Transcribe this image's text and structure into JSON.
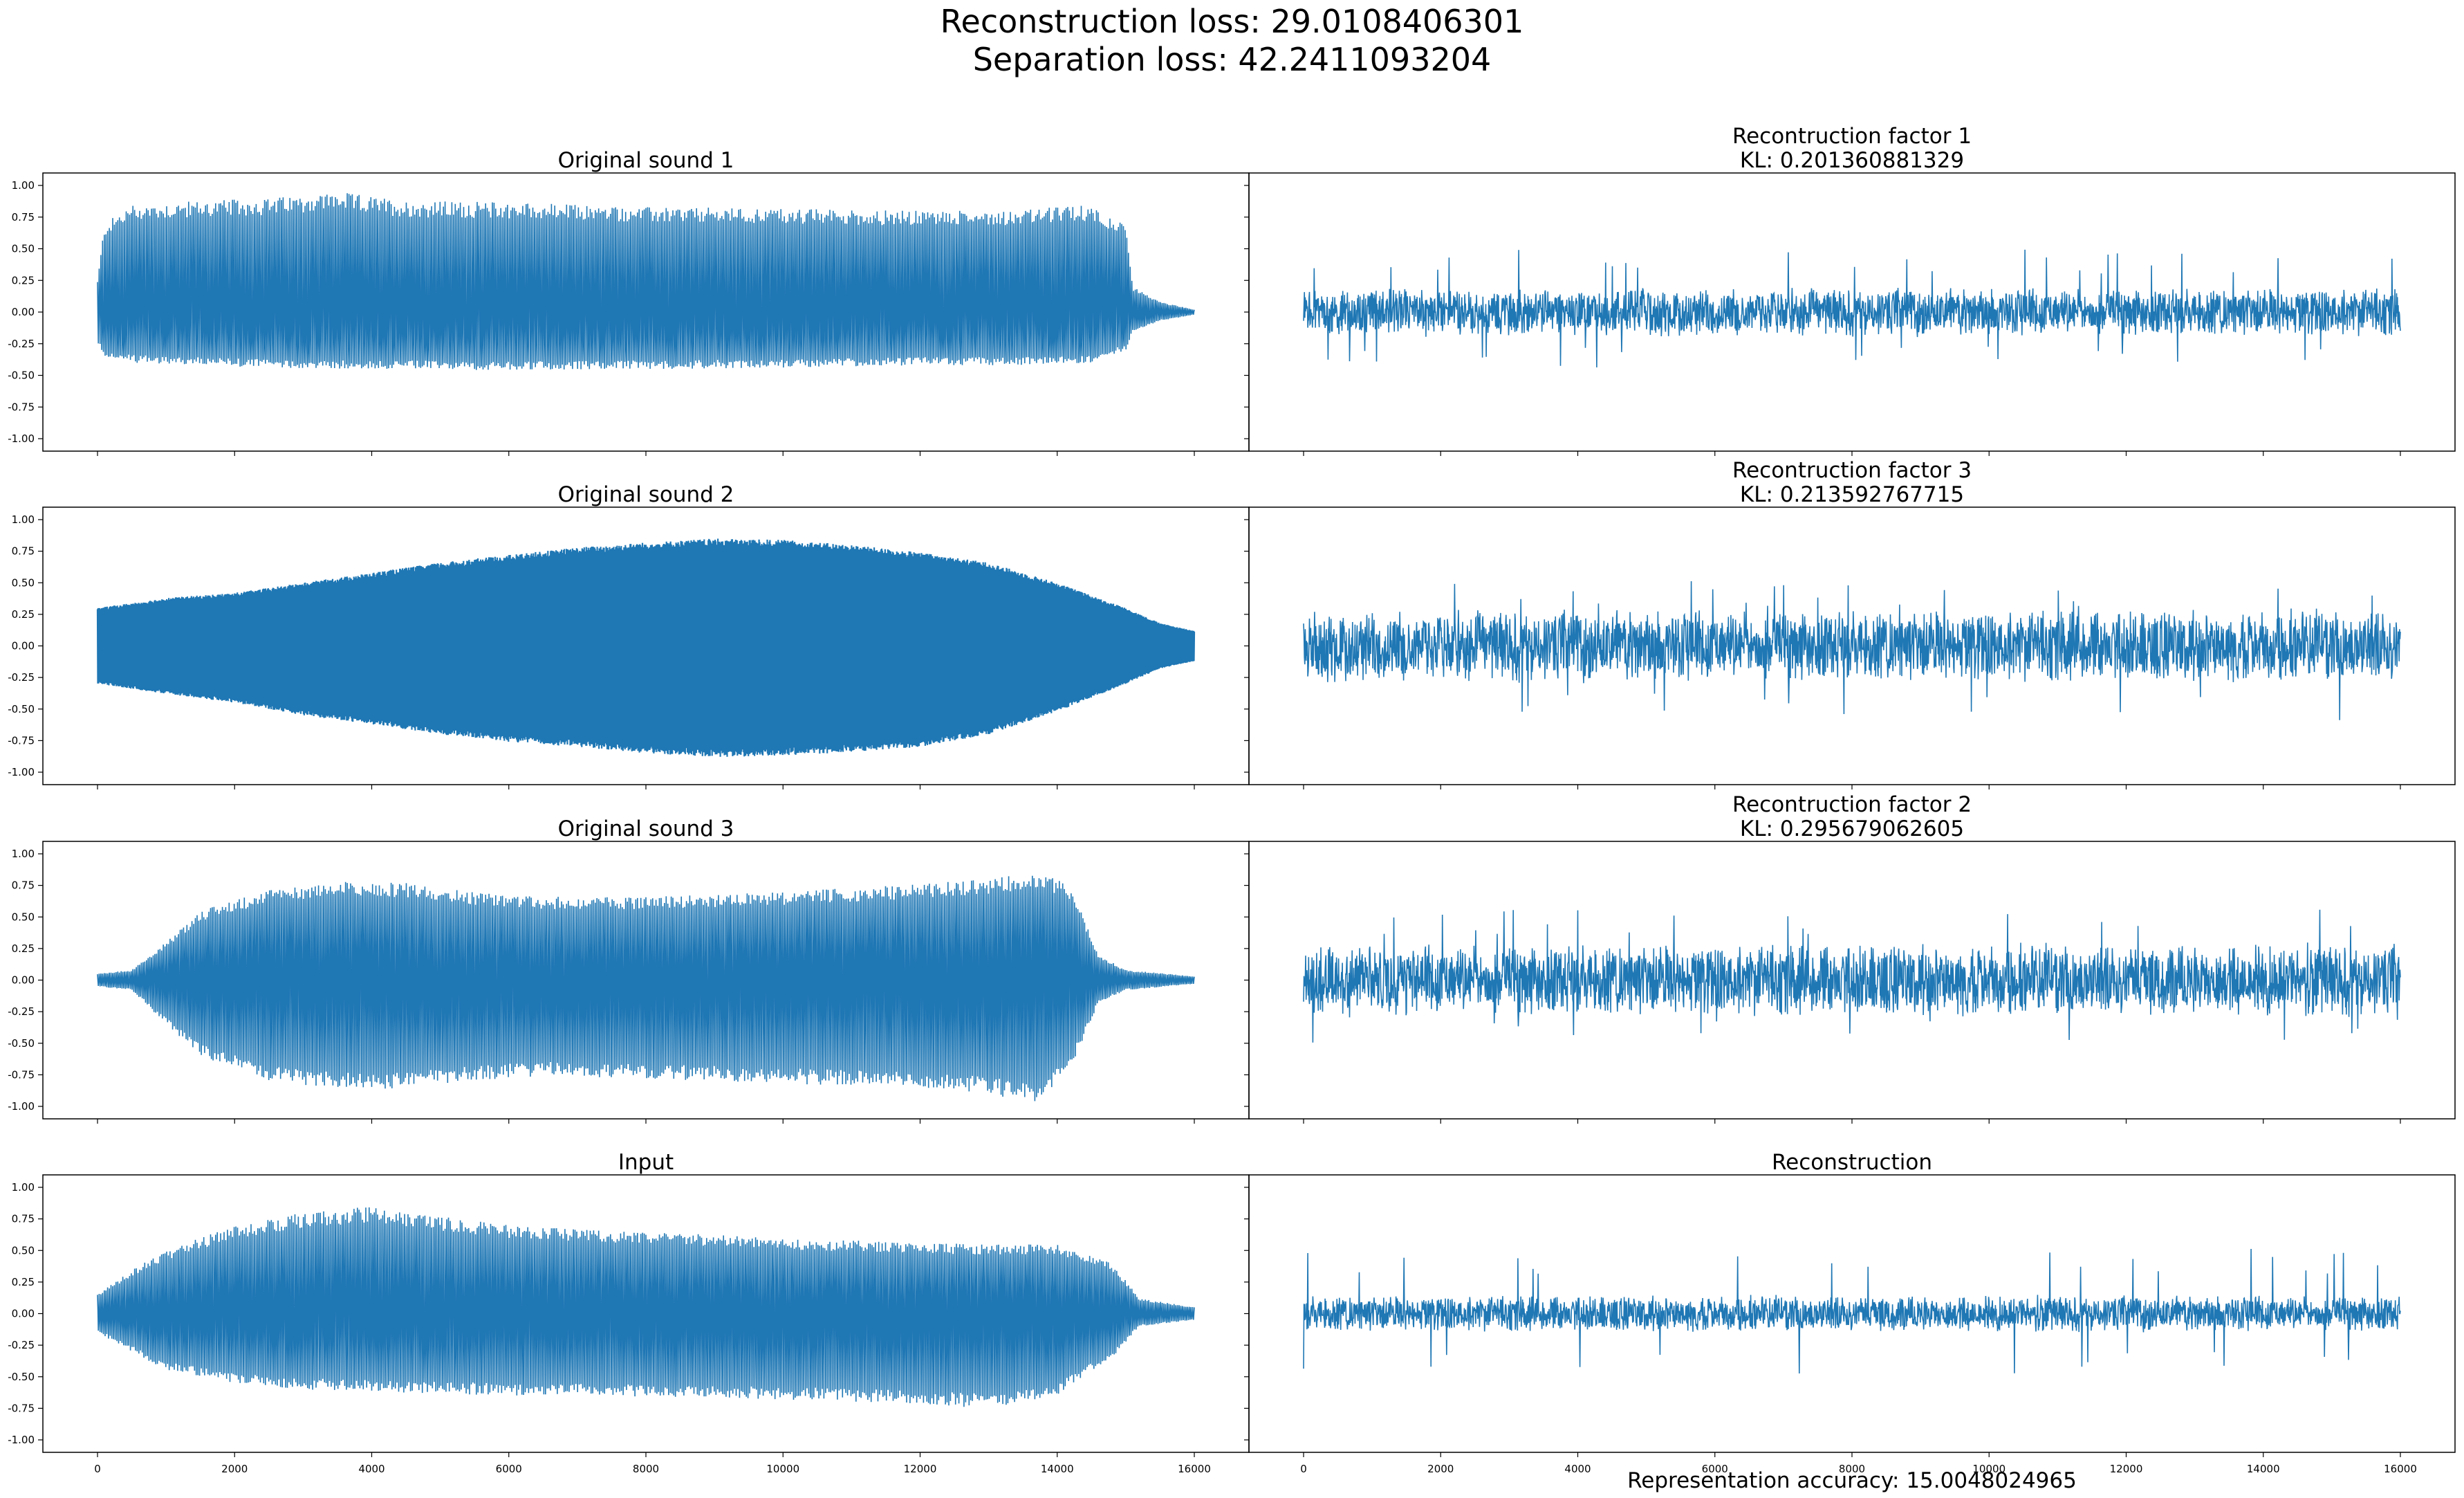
{
  "figure": {
    "suptitle_line1": "Reconstruction loss: 29.0108406301",
    "suptitle_line2": "Separation loss: 42.2411093204",
    "footer": "Representation accuracy: 15.0048024965",
    "line_color": "#1f77b4"
  },
  "chart_data": [
    {
      "type": "line",
      "id": "orig1",
      "title_lines": [
        "Original sound 1"
      ],
      "xlim": [
        0,
        16000
      ],
      "ylim": [
        -1.0,
        1.0
      ],
      "envelope": {
        "x": [
          0,
          100,
          500,
          1500,
          2500,
          3500,
          4500,
          6000,
          8000,
          10000,
          12000,
          13500,
          14500,
          15000,
          15100,
          15500,
          16000
        ],
        "upper": [
          0.25,
          0.7,
          0.85,
          0.88,
          0.9,
          0.95,
          0.88,
          0.87,
          0.83,
          0.82,
          0.8,
          0.81,
          0.85,
          0.68,
          0.2,
          0.08,
          0.02
        ],
        "lower": [
          -0.25,
          -0.35,
          -0.4,
          -0.42,
          -0.44,
          -0.45,
          -0.45,
          -0.46,
          -0.45,
          -0.44,
          -0.42,
          -0.42,
          -0.4,
          -0.3,
          -0.15,
          -0.07,
          -0.02
        ]
      },
      "style": "spiky"
    },
    {
      "type": "line",
      "id": "recon1",
      "title_lines": [
        "Recontruction factor 1",
        "KL: 0.201360881329"
      ],
      "xlim": [
        0,
        16000
      ],
      "ylim": [
        -1.0,
        1.0
      ],
      "envelope": {
        "x": [
          0,
          16000
        ],
        "upper": [
          0.2,
          0.2
        ],
        "lower": [
          -0.2,
          -0.2
        ]
      },
      "spike_max": 0.5,
      "spike_min": -0.45,
      "style": "noise"
    },
    {
      "type": "line",
      "id": "orig2",
      "title_lines": [
        "Original sound 2"
      ],
      "xlim": [
        0,
        16000
      ],
      "ylim": [
        -1.0,
        1.0
      ],
      "envelope": {
        "x": [
          0,
          1000,
          2000,
          3000,
          4000,
          5000,
          6000,
          7000,
          8000,
          9000,
          10000,
          11000,
          12000,
          13000,
          14000,
          15000,
          15500,
          16000
        ],
        "upper": [
          0.3,
          0.38,
          0.42,
          0.5,
          0.58,
          0.66,
          0.72,
          0.78,
          0.82,
          0.85,
          0.84,
          0.8,
          0.74,
          0.66,
          0.5,
          0.3,
          0.18,
          0.12
        ],
        "lower": [
          -0.3,
          -0.38,
          -0.45,
          -0.55,
          -0.62,
          -0.7,
          -0.76,
          -0.8,
          -0.85,
          -0.88,
          -0.87,
          -0.84,
          -0.8,
          -0.7,
          -0.52,
          -0.3,
          -0.18,
          -0.12
        ]
      },
      "style": "dense"
    },
    {
      "type": "line",
      "id": "recon3",
      "title_lines": [
        "Recontruction factor 3",
        "KL: 0.213592767715"
      ],
      "xlim": [
        0,
        16000
      ],
      "ylim": [
        -1.0,
        1.0
      ],
      "envelope": {
        "x": [
          0,
          16000
        ],
        "upper": [
          0.3,
          0.3
        ],
        "lower": [
          -0.3,
          -0.3
        ]
      },
      "spike_max": 0.52,
      "spike_min": -0.62,
      "style": "noise"
    },
    {
      "type": "line",
      "id": "orig3",
      "title_lines": [
        "Original sound 3"
      ],
      "xlim": [
        0,
        16000
      ],
      "ylim": [
        -1.0,
        1.0
      ],
      "envelope": {
        "x": [
          0,
          500,
          1000,
          1500,
          2500,
          3500,
          4500,
          5500,
          6500,
          8000,
          10000,
          12000,
          13000,
          13700,
          14200,
          14600,
          15000,
          16000
        ],
        "upper": [
          0.05,
          0.08,
          0.3,
          0.55,
          0.72,
          0.78,
          0.77,
          0.7,
          0.66,
          0.66,
          0.7,
          0.76,
          0.8,
          0.86,
          0.75,
          0.2,
          0.08,
          0.03
        ],
        "lower": [
          -0.05,
          -0.08,
          -0.35,
          -0.6,
          -0.8,
          -0.86,
          -0.86,
          -0.8,
          -0.76,
          -0.78,
          -0.82,
          -0.85,
          -0.9,
          -0.98,
          -0.7,
          -0.18,
          -0.08,
          -0.03
        ]
      },
      "style": "spiky"
    },
    {
      "type": "line",
      "id": "recon2",
      "title_lines": [
        "Recontruction factor 2",
        "KL: 0.295679062605"
      ],
      "xlim": [
        0,
        16000
      ],
      "ylim": [
        -1.0,
        1.0
      ],
      "envelope": {
        "x": [
          0,
          16000
        ],
        "upper": [
          0.3,
          0.3
        ],
        "lower": [
          -0.3,
          -0.3
        ]
      },
      "spike_max": 0.6,
      "spike_min": -0.5,
      "style": "noise"
    },
    {
      "type": "line",
      "id": "input",
      "title_lines": [
        "Input"
      ],
      "xlim": [
        0,
        16000
      ],
      "ylim": [
        -1.0,
        1.0
      ],
      "envelope": {
        "x": [
          0,
          500,
          1000,
          2000,
          3000,
          4000,
          6000,
          8000,
          10000,
          12000,
          13000,
          14000,
          14800,
          15200,
          16000
        ],
        "upper": [
          0.15,
          0.35,
          0.5,
          0.7,
          0.8,
          0.85,
          0.7,
          0.65,
          0.6,
          0.56,
          0.55,
          0.55,
          0.4,
          0.12,
          0.05
        ],
        "lower": [
          -0.15,
          -0.3,
          -0.45,
          -0.55,
          -0.6,
          -0.62,
          -0.65,
          -0.66,
          -0.68,
          -0.72,
          -0.75,
          -0.65,
          -0.35,
          -0.1,
          -0.05
        ]
      },
      "style": "spiky"
    },
    {
      "type": "line",
      "id": "recon",
      "title_lines": [
        "Reconstruction"
      ],
      "xlim": [
        0,
        16000
      ],
      "ylim": [
        -1.0,
        1.0
      ],
      "envelope": {
        "x": [
          0,
          16000
        ],
        "upper": [
          0.15,
          0.15
        ],
        "lower": [
          -0.15,
          -0.15
        ]
      },
      "spike_max": 0.52,
      "spike_min": -0.5,
      "style": "noise"
    }
  ],
  "axes": {
    "yticks": [
      "1.00",
      "0.75",
      "0.50",
      "0.25",
      "0.00",
      "-0.25",
      "-0.50",
      "-0.75",
      "-1.00"
    ],
    "ytick_values": [
      1.0,
      0.75,
      0.5,
      0.25,
      0.0,
      -0.25,
      -0.5,
      -0.75,
      -1.0
    ],
    "xticks": [
      "0",
      "2000",
      "4000",
      "6000",
      "8000",
      "10000",
      "12000",
      "14000",
      "16000"
    ],
    "xtick_values": [
      0,
      2000,
      4000,
      6000,
      8000,
      10000,
      12000,
      14000,
      16000
    ]
  }
}
